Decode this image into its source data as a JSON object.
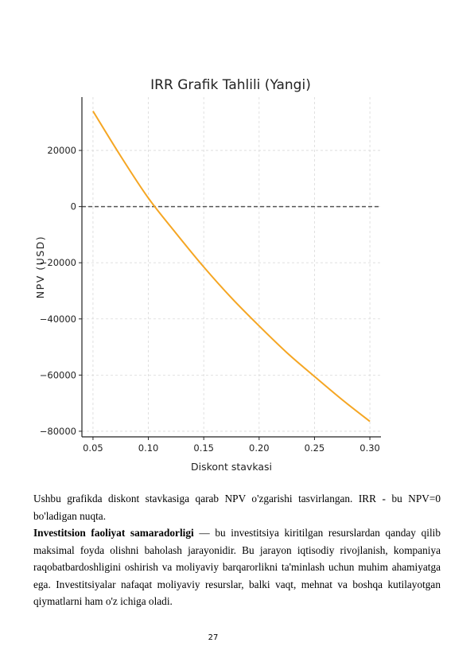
{
  "chart_data": {
    "type": "line",
    "title": "IRR Grafik Tahlili (Yangi)",
    "xlabel": "Diskont stavkasi",
    "ylabel": "NPV (USD)",
    "xlim": [
      0.04,
      0.31
    ],
    "ylim": [
      -82000,
      39000
    ],
    "x_ticks": [
      0.05,
      0.1,
      0.15,
      0.2,
      0.25,
      0.3
    ],
    "x_tick_labels": [
      "0.05",
      "0.10",
      "0.15",
      "0.20",
      "0.25",
      "0.30"
    ],
    "y_ticks": [
      20000,
      0,
      -20000,
      -40000,
      -60000,
      -80000
    ],
    "y_tick_labels": [
      "20000",
      "0",
      "−20000",
      "−40000",
      "−60000",
      "−80000"
    ],
    "grid": true,
    "series": [
      {
        "color": "#f5a623",
        "x": [
          0.05,
          0.075,
          0.1,
          0.125,
          0.15,
          0.175,
          0.2,
          0.225,
          0.25,
          0.275,
          0.3
        ],
        "y": [
          34000,
          18000,
          3000,
          -9500,
          -21500,
          -32500,
          -42500,
          -52000,
          -60500,
          -68800,
          -76500
        ]
      }
    ],
    "reference_line": {
      "y": 0,
      "style": "dashed",
      "color": "#555555"
    }
  },
  "text": {
    "paragraph1": "Ushbu grafikda diskont stavkasiga qarab NPV o'zgarishi tasvirlangan. IRR - bu NPV=0 bo'ladigan nuqta.",
    "paragraph2_bold": "Investitsion faoliyat samaradorligi",
    "paragraph2_rest": " — bu investitsiya kiritilgan resurslardan qanday qilib maksimal foyda olishni baholash jarayonidir. Bu jarayon iqtisodiy rivojlanish, kompaniya raqobatbardoshligini oshirish va moliyaviy barqarorlikni ta'minlash uchun muhim ahamiyatga ega. Investitsiyalar nafaqat moliyaviy resurslar, balki vaqt, mehnat va boshqa kutilayotgan qiymatlarni ham o'z ichiga oladi."
  },
  "page_number": "27"
}
